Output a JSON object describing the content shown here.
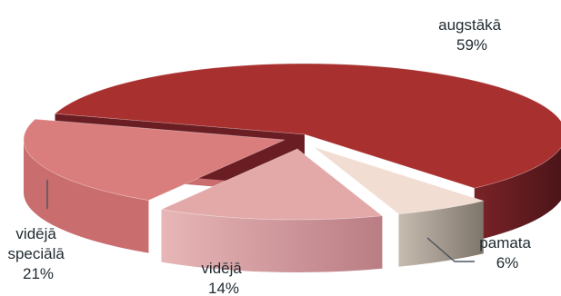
{
  "chart_data": {
    "type": "pie",
    "style": "3d-exploded",
    "legend": "none",
    "slices": [
      {
        "name": "augstākā",
        "value": 59,
        "label": "59%",
        "color": "#a8302f",
        "side": "#6a1d22"
      },
      {
        "name": "pamata",
        "value": 6,
        "label": "6%",
        "color": "#f2ddd3",
        "side": "#8e8478"
      },
      {
        "name": "vidējā",
        "value": 14,
        "label": "14%",
        "color": "#e3a9a9",
        "side": "#bf8389"
      },
      {
        "name": "vidējā speciālā",
        "value": 21,
        "label": "21%",
        "color": "#d97e7d",
        "side": "#c96d6e"
      }
    ]
  },
  "labels": {
    "augstaka": [
      "augstākā",
      "59%"
    ],
    "pamata": [
      "pamata",
      "6%"
    ],
    "videja": [
      "vidējā",
      "14%"
    ],
    "videja_speciala": [
      "vidējā",
      "speciālā",
      "21%"
    ]
  }
}
